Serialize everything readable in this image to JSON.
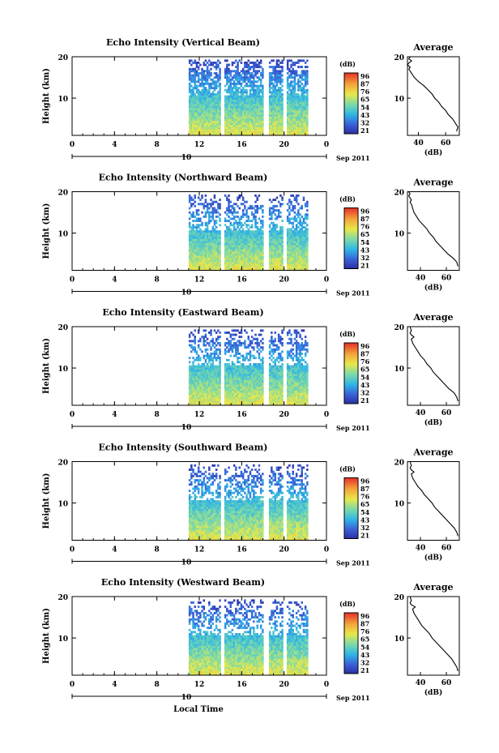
{
  "figure": {
    "xlabel": "Local Time",
    "date_label": "Sep 2011",
    "date_marker": "10",
    "colorbar_unit": "(dB)",
    "colorbar_ticks": [
      "96",
      "87",
      "76",
      "65",
      "54",
      "43",
      "32",
      "21"
    ],
    "avg_title": "Average",
    "avg_xlabel": "(dB)",
    "colors": {
      "frame": "#000000",
      "data_gaps": "#ffffff",
      "colormap": [
        "#2b2b9a",
        "#3a5fd8",
        "#2fb6e6",
        "#7cd9a8",
        "#e8e84a",
        "#f4a53a",
        "#e83a2a"
      ]
    }
  },
  "chart_data": [
    {
      "type": "heatmap",
      "title": "Echo Intensity (Vertical Beam)",
      "ylabel": "Height (km)",
      "x_ticks": [
        "0",
        "4",
        "8",
        "12",
        "16",
        "20",
        "0"
      ],
      "xlim": [
        0,
        24
      ],
      "y_ticks": [
        "20",
        "10"
      ],
      "ylim": [
        1,
        20
      ],
      "data_start_hour": 11,
      "data_gaps_hours": [
        [
          14.0,
          14.3
        ],
        [
          18.0,
          18.4
        ],
        [
          19.8,
          20.1
        ],
        [
          22.2,
          22.5
        ]
      ],
      "colorbar": {
        "unit": "(dB)",
        "ticks": [
          96,
          87,
          76,
          65,
          54,
          43,
          32,
          21
        ]
      },
      "average_profile": {
        "title": "Average",
        "xlabel": "(dB)",
        "x_ticks": [
          "40",
          "60"
        ],
        "xlim": [
          32,
          70
        ],
        "y_ticks": [
          "20",
          "10"
        ],
        "ylim": [
          1,
          20
        ],
        "x": [
          68,
          69,
          67,
          65,
          62,
          60,
          57,
          55,
          52,
          50,
          47,
          44,
          40,
          37,
          35,
          33,
          34,
          32,
          33,
          35,
          33,
          34,
          33
        ],
        "y": [
          2,
          3,
          4,
          5,
          6,
          7,
          8,
          9,
          10,
          11,
          12,
          13,
          14,
          15,
          16,
          17,
          17.5,
          18,
          18.5,
          19,
          19.5,
          20,
          20
        ]
      }
    },
    {
      "type": "heatmap",
      "title": "Echo Intensity (Northward Beam)",
      "ylabel": "Height (km)",
      "x_ticks": [
        "0",
        "4",
        "8",
        "12",
        "16",
        "20",
        "0"
      ],
      "xlim": [
        0,
        24
      ],
      "y_ticks": [
        "20",
        "10"
      ],
      "ylim": [
        1,
        20
      ],
      "data_start_hour": 11,
      "data_gaps_hours": [
        [
          14.0,
          14.3
        ],
        [
          18.0,
          18.4
        ],
        [
          19.8,
          20.1
        ],
        [
          22.2,
          22.5
        ]
      ],
      "colorbar": {
        "unit": "(dB)",
        "ticks": [
          96,
          87,
          76,
          65,
          54,
          43,
          32,
          21
        ]
      },
      "average_profile": {
        "title": "Average",
        "xlabel": "(dB)",
        "x_ticks": [
          "40",
          "60"
        ],
        "xlim": [
          30,
          70
        ],
        "y_ticks": [
          "20",
          "10"
        ],
        "ylim": [
          1,
          20
        ],
        "x": [
          69,
          68,
          65,
          61,
          58,
          55,
          52,
          50,
          47,
          45,
          42,
          39,
          37,
          35,
          34,
          33,
          32,
          33,
          32,
          31,
          32,
          31
        ],
        "y": [
          2,
          3,
          4,
          5,
          6,
          7,
          8,
          9,
          10,
          11,
          12,
          13,
          14,
          15,
          16,
          17,
          17.5,
          18,
          18.5,
          19,
          19.5,
          20
        ]
      }
    },
    {
      "type": "heatmap",
      "title": "Echo Intensity (Eastward Beam)",
      "ylabel": "Height (km)",
      "x_ticks": [
        "0",
        "4",
        "8",
        "12",
        "16",
        "20",
        "0"
      ],
      "xlim": [
        0,
        24
      ],
      "y_ticks": [
        "20",
        "10"
      ],
      "ylim": [
        1,
        20
      ],
      "data_start_hour": 11,
      "data_gaps_hours": [
        [
          14.0,
          14.3
        ],
        [
          18.0,
          18.4
        ],
        [
          19.8,
          20.1
        ],
        [
          22.2,
          22.5
        ]
      ],
      "colorbar": {
        "unit": "(dB)",
        "ticks": [
          96,
          87,
          76,
          65,
          54,
          43,
          32,
          21
        ]
      },
      "average_profile": {
        "title": "Average",
        "xlabel": "(dB)",
        "x_ticks": [
          "40",
          "60"
        ],
        "xlim": [
          30,
          70
        ],
        "y_ticks": [
          "20",
          "10"
        ],
        "ylim": [
          1,
          20
        ],
        "x": [
          69,
          68,
          66,
          62,
          59,
          56,
          53,
          50,
          48,
          45,
          43,
          40,
          38,
          36,
          34,
          33,
          35,
          33,
          32,
          33,
          32
        ],
        "y": [
          2,
          3,
          4,
          5,
          6,
          7,
          8,
          9,
          10,
          11,
          12,
          13,
          14,
          15,
          16,
          17,
          17.5,
          18,
          18.5,
          19,
          20
        ]
      }
    },
    {
      "type": "heatmap",
      "title": "Echo Intensity (Southward Beam)",
      "ylabel": "Height (km)",
      "x_ticks": [
        "0",
        "4",
        "8",
        "12",
        "16",
        "20",
        "0"
      ],
      "xlim": [
        0,
        24
      ],
      "y_ticks": [
        "20",
        "10"
      ],
      "ylim": [
        1,
        20
      ],
      "data_start_hour": 11,
      "data_gaps_hours": [
        [
          14.0,
          14.3
        ],
        [
          18.0,
          18.4
        ],
        [
          19.8,
          20.1
        ],
        [
          22.2,
          22.5
        ]
      ],
      "colorbar": {
        "unit": "(dB)",
        "ticks": [
          96,
          87,
          76,
          65,
          54,
          43,
          32,
          21
        ]
      },
      "average_profile": {
        "title": "Average",
        "xlabel": "(dB)",
        "x_ticks": [
          "40",
          "60"
        ],
        "xlim": [
          30,
          70
        ],
        "y_ticks": [
          "20",
          "10"
        ],
        "ylim": [
          1,
          20
        ],
        "x": [
          69,
          68,
          66,
          63,
          60,
          57,
          54,
          51,
          49,
          46,
          43,
          41,
          38,
          36,
          34,
          33,
          35,
          33,
          32,
          33,
          32
        ],
        "y": [
          2,
          3,
          4,
          5,
          6,
          7,
          8,
          9,
          10,
          11,
          12,
          13,
          14,
          15,
          16,
          17,
          17.5,
          18,
          18.5,
          19,
          20
        ]
      }
    },
    {
      "type": "heatmap",
      "title": "Echo Intensity (Westward Beam)",
      "ylabel": "Height (km)",
      "x_ticks": [
        "0",
        "4",
        "8",
        "12",
        "16",
        "20",
        "0"
      ],
      "xlim": [
        0,
        24
      ],
      "y_ticks": [
        "20",
        "10"
      ],
      "ylim": [
        1,
        20
      ],
      "data_start_hour": 11,
      "data_gaps_hours": [
        [
          14.0,
          14.3
        ],
        [
          18.0,
          18.4
        ],
        [
          19.8,
          20.1
        ],
        [
          22.2,
          22.5
        ]
      ],
      "colorbar": {
        "unit": "(dB)",
        "ticks": [
          96,
          87,
          76,
          65,
          54,
          43,
          32,
          21
        ]
      },
      "average_profile": {
        "title": "Average",
        "xlabel": "(dB)",
        "x_ticks": [
          "40",
          "60"
        ],
        "xlim": [
          30,
          70
        ],
        "y_ticks": [
          "20",
          "10"
        ],
        "ylim": [
          1,
          20
        ],
        "x": [
          69,
          68,
          66,
          64,
          61,
          58,
          55,
          52,
          49,
          47,
          44,
          41,
          39,
          37,
          35,
          34,
          36,
          33,
          32,
          33,
          32
        ],
        "y": [
          2,
          3,
          4,
          5,
          6,
          7,
          8,
          9,
          10,
          11,
          12,
          13,
          14,
          15,
          16,
          17,
          17.5,
          18,
          18.5,
          19,
          20
        ]
      }
    }
  ]
}
